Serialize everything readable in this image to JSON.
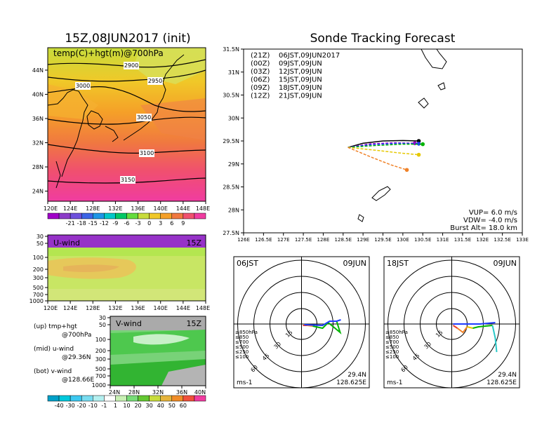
{
  "left_title": "15Z,08JUN2017 (init)",
  "right_title": "Sonde Tracking Forecast",
  "upper_map": {
    "label": "temp(C)+hgt(m)@700hPa",
    "lon_ticks": [
      "120E",
      "124E",
      "128E",
      "132E",
      "136E",
      "140E",
      "144E",
      "148E"
    ],
    "lat_ticks": [
      "44N",
      "40N",
      "36N",
      "32N",
      "28N",
      "24N"
    ],
    "contours": [
      "2900",
      "2950",
      "3000",
      "3050",
      "3100",
      "3150"
    ],
    "colorbar_labels": [
      "-21",
      "-18",
      "-15",
      "-12",
      "-9",
      "-6",
      "-3",
      "0",
      "3",
      "6",
      "9"
    ]
  },
  "uwind_panel": {
    "label": "U-wind",
    "time": "15Z",
    "p_ticks": [
      "30",
      "50",
      "100",
      "200",
      "300",
      "500",
      "700",
      "1000"
    ],
    "lon_ticks": [
      "120E",
      "124E",
      "128E",
      "132E",
      "136E",
      "140E",
      "144E",
      "148E"
    ]
  },
  "vwind_panel": {
    "label": "V-wind",
    "time": "15Z",
    "p_ticks": [
      "30",
      "50",
      "100",
      "200",
      "300",
      "500",
      "700",
      "1000"
    ],
    "lat_ticks": [
      "24N",
      "28N",
      "32N",
      "36N",
      "40N"
    ]
  },
  "wind_colorbar_labels": [
    "-40",
    "-30",
    "-20",
    "-10",
    "-1",
    "1",
    "10",
    "20",
    "30",
    "40",
    "50",
    "60"
  ],
  "legend_notes": [
    {
      "a": "(up) tmp+hgt",
      "b": "@700hPa"
    },
    {
      "a": "(mid) u-wind",
      "b": "@29.36N"
    },
    {
      "a": "(bot) v-wind",
      "b": "@128.66E"
    }
  ],
  "track_map": {
    "lat_ticks": [
      "31.5N",
      "31N",
      "30.5N",
      "30N",
      "29.5N",
      "29N",
      "28.5N",
      "28N",
      "27.5N"
    ],
    "lon_ticks": [
      "126E",
      "126.5E",
      "127E",
      "127.5E",
      "128E",
      "128.5E",
      "129E",
      "129.5E",
      "130E",
      "130.5E",
      "131E",
      "131.5E",
      "132E",
      "132.5E",
      "133E"
    ],
    "legend": [
      {
        "code": "(21Z)",
        "time": "06JST,09JUN2017",
        "color": "#000000"
      },
      {
        "code": "(00Z)",
        "time": "09JST,09JUN",
        "color": "#a000c8"
      },
      {
        "code": "(03Z)",
        "time": "12JST,09JUN",
        "color": "#1e3cff"
      },
      {
        "code": "(06Z)",
        "time": "15JST,09JUN",
        "color": "#00b400"
      },
      {
        "code": "(09Z)",
        "time": "18JST,09JUN",
        "color": "#e6c800"
      },
      {
        "code": "(12Z)",
        "time": "21JST,09JUN",
        "color": "#f08228"
      }
    ],
    "params": [
      "VUP= 6.0 m/s",
      "VDW= -4.0 m/s",
      "Burst Alt= 18.0 km"
    ]
  },
  "chart_data": [
    {
      "type": "line",
      "title": "Sonde Tracking Forecast",
      "xlim": [
        126,
        133
      ],
      "ylim": [
        27.5,
        31.5
      ],
      "series": [
        {
          "name": "(21Z) 06JST,09JUN2017",
          "x": [
            128.62,
            129.0,
            129.5,
            130.0,
            130.4
          ],
          "y": [
            29.36,
            29.45,
            29.5,
            29.51,
            29.5
          ]
        },
        {
          "name": "(00Z) 09JST,09JUN",
          "x": [
            128.62,
            129.2,
            129.8,
            130.3
          ],
          "y": [
            29.36,
            29.44,
            29.46,
            29.45
          ]
        },
        {
          "name": "(03Z) 12JST,09JUN",
          "x": [
            128.62,
            129.2,
            129.9,
            130.4
          ],
          "y": [
            29.36,
            29.42,
            29.45,
            29.44
          ]
        },
        {
          "name": "(06Z) 15JST,09JUN",
          "x": [
            128.62,
            129.3,
            130.0,
            130.5
          ],
          "y": [
            29.36,
            29.4,
            29.43,
            29.43
          ]
        },
        {
          "name": "(09Z) 18JST,09JUN",
          "x": [
            128.62,
            129.3,
            129.9,
            130.4
          ],
          "y": [
            29.36,
            29.3,
            29.24,
            29.2
          ]
        },
        {
          "name": "(12Z) 21JST,09JUN",
          "x": [
            128.62,
            129.2,
            129.7,
            130.1
          ],
          "y": [
            29.36,
            29.15,
            28.98,
            28.87
          ]
        }
      ]
    }
  ],
  "hodographs": [
    {
      "time": "06JST",
      "date": "09JUN",
      "lat": "29.4N",
      "lon": "128.625E",
      "unit": "ms-1",
      "rings": [
        "15",
        "30",
        "45",
        "60"
      ],
      "levels": [
        {
          "label": "≥850hPa",
          "color": "#f03c28"
        },
        {
          "label": "≤850",
          "color": "#f08228"
        },
        {
          "label": "≤700",
          "color": "#e6c800"
        },
        {
          "label": "≤500",
          "color": "#00b400"
        },
        {
          "label": "≤250",
          "color": "#28c8c8"
        },
        {
          "label": "≤100",
          "color": "#1e3cff"
        }
      ]
    },
    {
      "time": "18JST",
      "date": "09JUN",
      "lat": "29.4N",
      "lon": "128.625E",
      "unit": "ms-1",
      "rings": [
        "15",
        "30",
        "45",
        "60"
      ],
      "levels": [
        {
          "label": "≥850hPa",
          "color": "#f03c28"
        },
        {
          "label": "≤850",
          "color": "#f08228"
        },
        {
          "label": "≤700",
          "color": "#e6c800"
        },
        {
          "label": "≤500",
          "color": "#00b400"
        },
        {
          "label": "≤250",
          "color": "#28c8c8"
        },
        {
          "label": "≤100",
          "color": "#1e3cff"
        }
      ]
    }
  ]
}
